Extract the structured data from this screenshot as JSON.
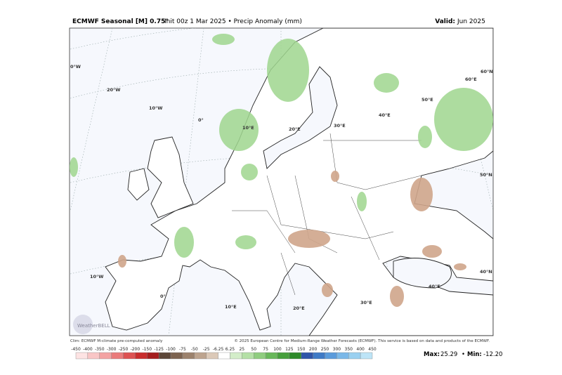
{
  "header": {
    "title_bold": "ECMWF Seasonal [M] 0.75°",
    "title_rest": "Init 00z 1 Mar 2025 • Precip Anomaly (mm)",
    "valid_label": "Valid:",
    "valid_value": "Jun 2025"
  },
  "map": {
    "grid_labels": [
      "0°W",
      "20°W",
      "10°W",
      "0°",
      "10°E",
      "20°E",
      "30°E",
      "40°E",
      "50°E",
      "60°E",
      "60°N",
      "50°N",
      "40°N",
      "10°W",
      "0°",
      "10°E",
      "20°E",
      "30°E",
      "40°E"
    ],
    "watermark": "WeatherBELL"
  },
  "footer": {
    "climo": "Clim: ECMWF M-climate pre-computed anomaly",
    "copyright": "© 2025 European Centre for Medium-Range Weather Forecasts (ECMWF). This service is based on data and products of the ECMWF."
  },
  "legend": {
    "ticks": [
      -450,
      -400,
      -350,
      -300,
      -250,
      -200,
      -150,
      -125,
      -100,
      -75,
      -50,
      -25,
      -6.25,
      6.25,
      25,
      50,
      75,
      100,
      125,
      150,
      200,
      250,
      300,
      350,
      400,
      450
    ],
    "colors": [
      "#fde3e3",
      "#f9c6c6",
      "#f3a3a3",
      "#ea7b7b",
      "#dd5252",
      "#c92d2d",
      "#a51e1e",
      "#5c4638",
      "#7c6350",
      "#9c826d",
      "#bda48f",
      "#dbc9b8",
      "#ffffff",
      "#d3edc9",
      "#b4e0a6",
      "#8fcd7f",
      "#68b85a",
      "#469f3c",
      "#2e8a2a",
      "#2f55a8",
      "#3e7ac6",
      "#5a9bdb",
      "#7ab8e8",
      "#9ad0f0",
      "#bde4f7"
    ]
  },
  "stats": {
    "max_label": "Max:",
    "max": 25.29,
    "min_label": "Min:",
    "min": {
      "value": -12.2,
      "label": "-12.20"
    }
  }
}
